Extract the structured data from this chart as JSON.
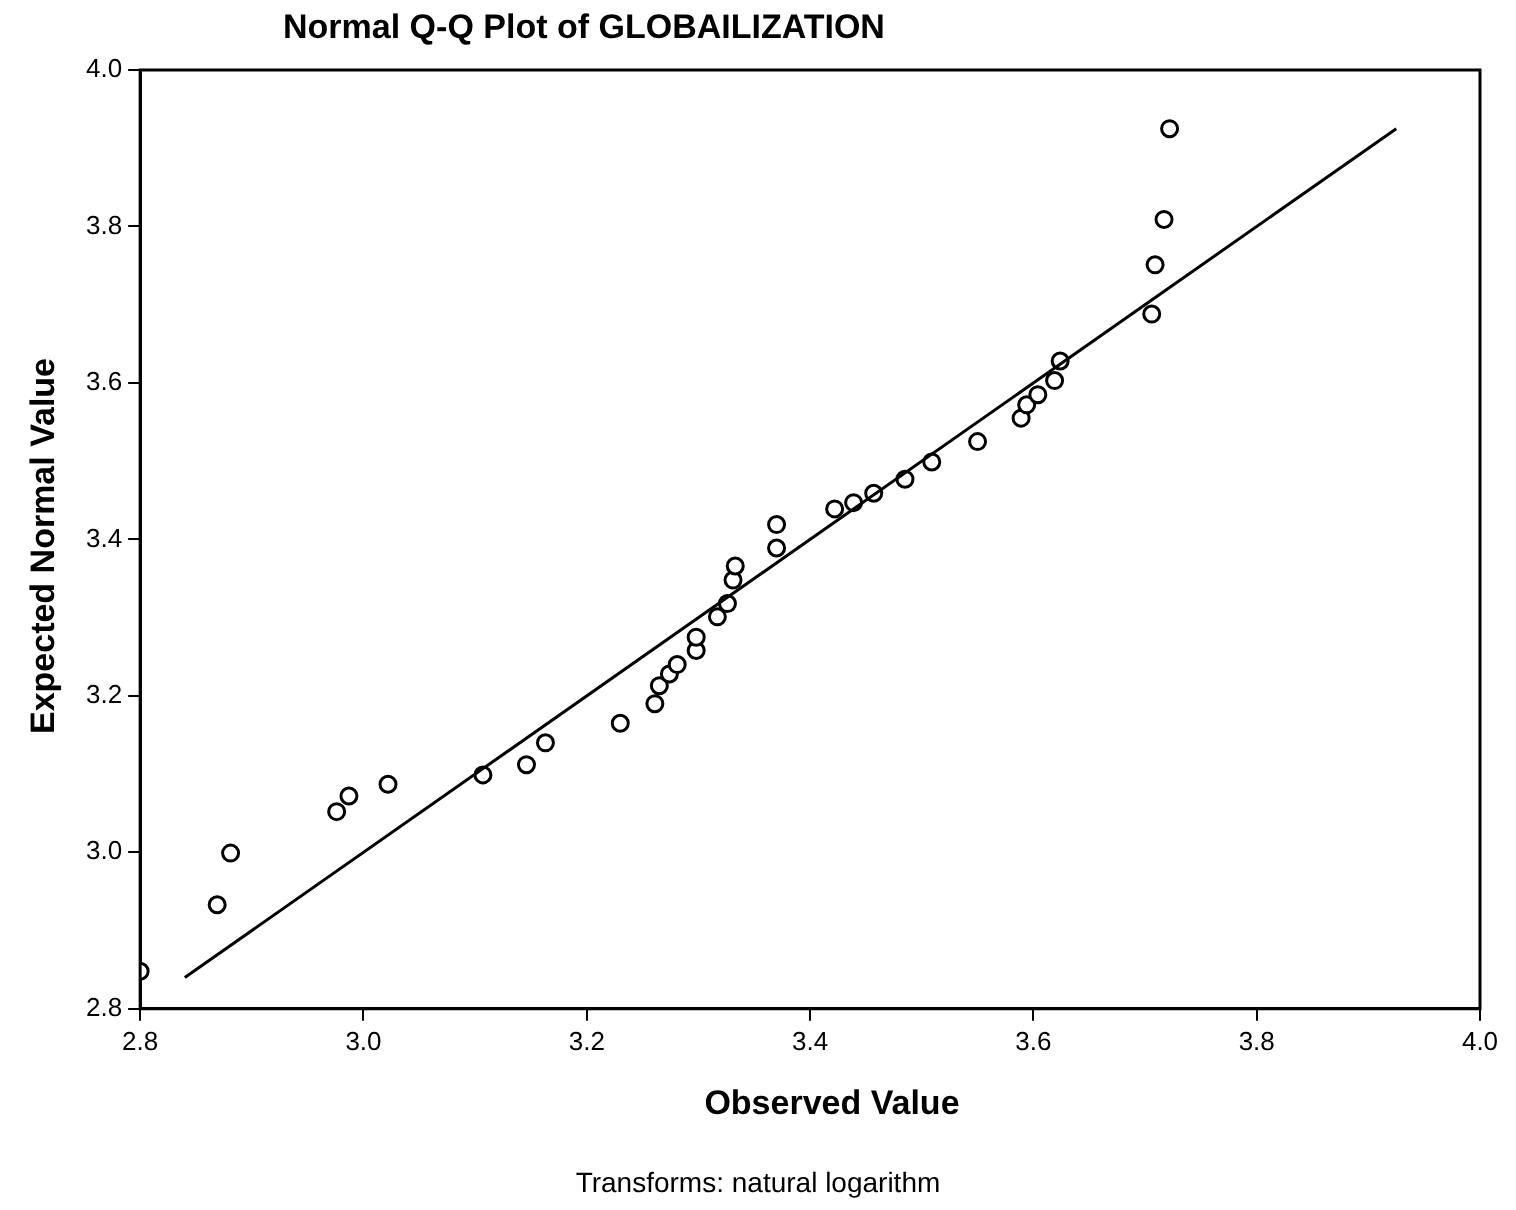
{
  "chart_data": {
    "type": "scatter",
    "title": "Normal Q-Q Plot of GLOBAILIZATION",
    "xlabel": "Observed Value",
    "ylabel": "Expected Normal Value",
    "annotations": [
      "Transforms: natural logarithm"
    ],
    "xlim": [
      2.8,
      4.0
    ],
    "ylim": [
      2.8,
      4.0
    ],
    "xticks": [
      2.8,
      {
        "value": 3,
        "label": "3.0"
      },
      3.2,
      3.4,
      3.6,
      3.8,
      {
        "value": 4,
        "label": "4.0"
      }
    ],
    "yticks": [
      2.8,
      {
        "value": 3,
        "label": "3.0"
      },
      3.2,
      3.4,
      3.6,
      3.8,
      {
        "value": 4,
        "label": "4.0"
      }
    ],
    "grid": false,
    "legend": false,
    "marker": "circle",
    "series": [
      {
        "color": "#000000",
        "x": [
          2.8,
          2.869,
          2.881,
          2.976,
          2.987,
          3.022,
          3.107,
          3.146,
          3.163,
          3.23,
          3.261,
          3.265,
          3.274,
          3.281,
          3.298,
          3.298,
          3.317,
          3.326,
          3.331,
          3.333,
          3.37,
          3.37,
          3.422,
          3.439,
          3.457,
          3.485,
          3.509,
          3.55,
          3.589,
          3.594,
          3.604,
          3.619,
          3.624,
          3.706,
          3.709,
          3.717,
          3.722
        ],
        "values": [
          2.848,
          2.933,
          2.999,
          3.052,
          3.072,
          3.087,
          3.099,
          3.112,
          3.14,
          3.165,
          3.19,
          3.213,
          3.228,
          3.24,
          3.258,
          3.275,
          3.301,
          3.318,
          3.348,
          3.366,
          3.389,
          3.419,
          3.439,
          3.447,
          3.459,
          3.477,
          3.499,
          3.525,
          3.555,
          3.572,
          3.585,
          3.603,
          3.628,
          3.688,
          3.751,
          3.809,
          3.925
        ]
      },
      {
        "type": "line",
        "marker": "none",
        "color": "#000000",
        "x": [
          2.84,
          3.925
        ],
        "values": [
          2.84,
          3.925
        ]
      }
    ]
  }
}
